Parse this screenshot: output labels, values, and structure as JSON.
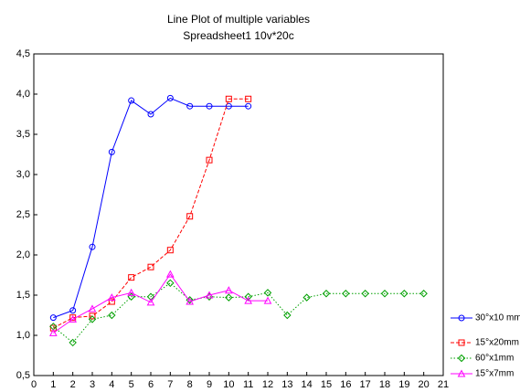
{
  "chart_data": {
    "type": "line",
    "title": "Line Plot of multiple variables",
    "subtitle": "Spreadsheet1 10v*20c",
    "x": [
      1,
      2,
      3,
      4,
      5,
      6,
      7,
      8,
      9,
      10,
      11,
      12,
      13,
      14,
      15,
      16,
      17,
      18,
      19,
      20
    ],
    "xlim": [
      0,
      21
    ],
    "xticks": [
      0,
      1,
      2,
      3,
      4,
      5,
      6,
      7,
      8,
      9,
      10,
      11,
      12,
      13,
      14,
      15,
      16,
      17,
      18,
      19,
      20,
      21
    ],
    "ylim": [
      0.5,
      4.5
    ],
    "yticks": [
      {
        "value": 0.5,
        "label": "0,5"
      },
      {
        "value": 1.0,
        "label": "1,0"
      },
      {
        "value": 1.5,
        "label": "1,5"
      },
      {
        "value": 2.0,
        "label": "2,0"
      },
      {
        "value": 2.5,
        "label": "2,5"
      },
      {
        "value": 3.0,
        "label": "3,0"
      },
      {
        "value": 3.5,
        "label": "3,5"
      },
      {
        "value": 4.0,
        "label": "4,0"
      },
      {
        "value": 4.5,
        "label": "4,5"
      }
    ],
    "grid": false,
    "legend": "right",
    "series": [
      {
        "name": "30°x10 mm",
        "color": "#0000ff",
        "marker": "circle",
        "line_style": "solid",
        "values": [
          1.22,
          1.31,
          2.1,
          3.28,
          3.92,
          3.75,
          3.95,
          3.85,
          3.85,
          3.85,
          3.85,
          null,
          null,
          null,
          null,
          null,
          null,
          null,
          null,
          null
        ]
      },
      {
        "name": "15°x20mm",
        "color": "#ff0000",
        "marker": "square",
        "line_style": "dashed",
        "values": [
          1.09,
          1.22,
          1.24,
          1.42,
          1.72,
          1.85,
          2.06,
          2.48,
          3.18,
          3.94,
          3.94,
          null,
          null,
          null,
          null,
          null,
          null,
          null,
          null,
          null
        ]
      },
      {
        "name": "60°x1mm",
        "color": "#00a000",
        "marker": "diamond",
        "line_style": "dotted",
        "values": [
          1.11,
          0.91,
          1.2,
          1.25,
          1.48,
          1.48,
          1.65,
          1.44,
          1.48,
          1.47,
          1.48,
          1.53,
          1.25,
          1.47,
          1.52,
          1.52,
          1.52,
          1.52,
          1.52,
          1.52
        ]
      },
      {
        "name": "15°x7mm",
        "color": "#ff00ff",
        "marker": "triangle",
        "line_style": "solid",
        "values": [
          1.03,
          1.2,
          1.33,
          1.47,
          1.53,
          1.41,
          1.76,
          1.42,
          1.5,
          1.56,
          1.43,
          1.43,
          null,
          null,
          null,
          null,
          null,
          null,
          null,
          null
        ]
      }
    ]
  }
}
